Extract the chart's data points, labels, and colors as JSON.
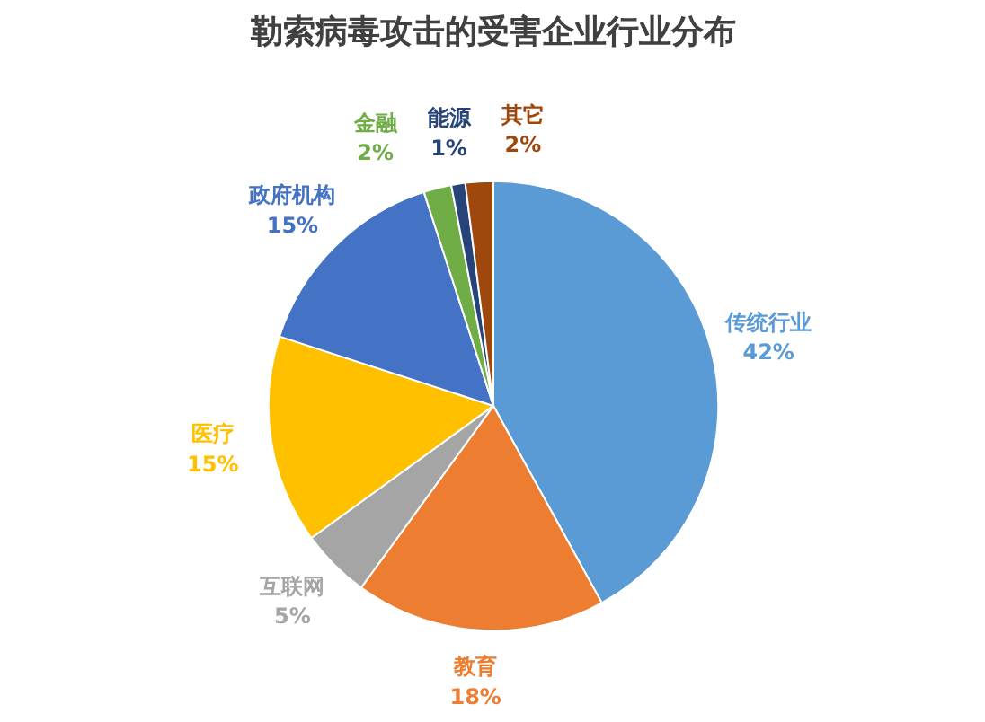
{
  "chart_data": {
    "type": "pie",
    "title": "勒索病毒攻击的受害企业行业分布",
    "categories": [
      "传统行业",
      "教育",
      "互联网",
      "医疗",
      "政府机构",
      "金融",
      "能源",
      "其它"
    ],
    "values": [
      42,
      18,
      5,
      15,
      15,
      2,
      1,
      2
    ],
    "colors": [
      "#5b9bd5",
      "#ed7d31",
      "#a5a5a5",
      "#ffc000",
      "#4472c4",
      "#70ad47",
      "#264478",
      "#9e480e"
    ],
    "value_labels": [
      "42%",
      "18%",
      "5%",
      "15%",
      "15%",
      "2%",
      "1%",
      "2%"
    ]
  }
}
